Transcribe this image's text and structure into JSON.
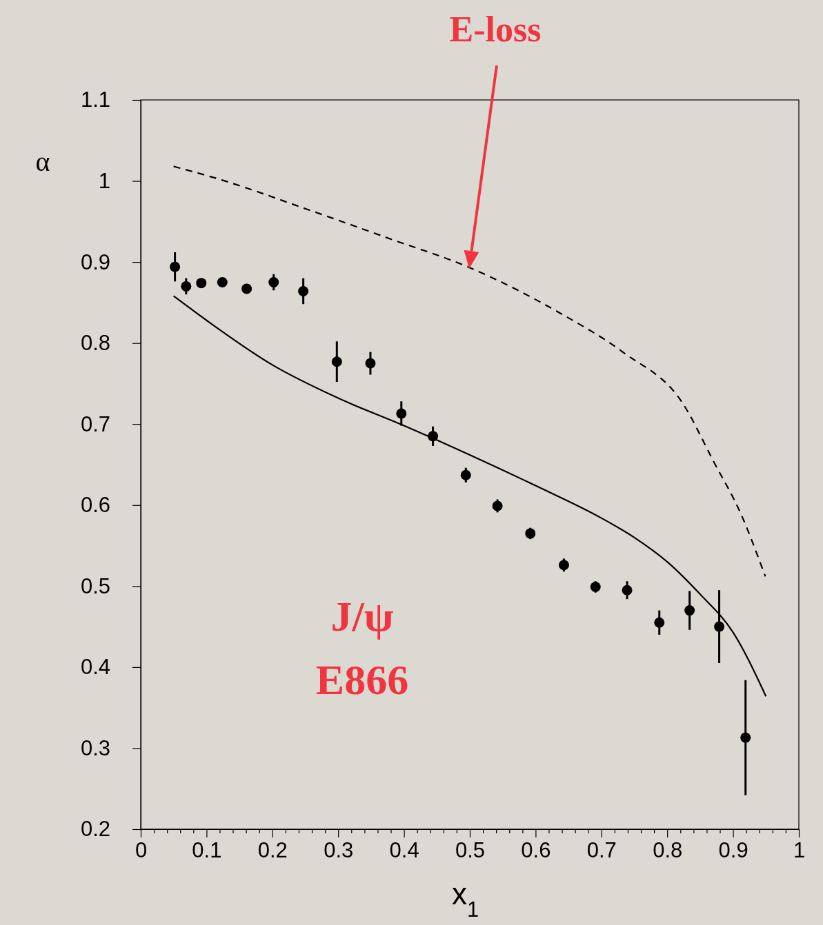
{
  "chart_data": {
    "type": "scatter",
    "xlabel": "x$_{1}$",
    "ylabel": "α",
    "xlim": [
      0,
      1
    ],
    "ylim": [
      0.2,
      1.1
    ],
    "xticks": [
      0,
      {
        "value": 0.02,
        "label": null
      },
      {
        "value": 0.04,
        "label": null
      },
      {
        "value": 0.06,
        "label": null
      },
      {
        "value": 0.08,
        "label": null
      },
      0.1,
      {
        "value": 0.12,
        "label": null
      },
      {
        "value": 0.14,
        "label": null
      },
      {
        "value": 0.16,
        "label": null
      },
      {
        "value": 0.18,
        "label": null
      },
      0.2,
      {
        "value": 0.22,
        "label": null
      },
      {
        "value": 0.24,
        "label": null
      },
      {
        "value": 0.26,
        "label": null
      },
      {
        "value": 0.28,
        "label": null
      },
      0.3,
      {
        "value": 0.32,
        "label": null
      },
      {
        "value": 0.34,
        "label": null
      },
      {
        "value": 0.36,
        "label": null
      },
      {
        "value": 0.38,
        "label": null
      },
      0.4,
      {
        "value": 0.42,
        "label": null
      },
      {
        "value": 0.44,
        "label": null
      },
      {
        "value": 0.46,
        "label": null
      },
      {
        "value": 0.48,
        "label": null
      },
      0.5,
      {
        "value": 0.52,
        "label": null
      },
      {
        "value": 0.54,
        "label": null
      },
      {
        "value": 0.56,
        "label": null
      },
      {
        "value": 0.58,
        "label": null
      },
      0.6,
      {
        "value": 0.62,
        "label": null
      },
      {
        "value": 0.64,
        "label": null
      },
      {
        "value": 0.66,
        "label": null
      },
      {
        "value": 0.68,
        "label": null
      },
      0.7,
      {
        "value": 0.72,
        "label": null
      },
      {
        "value": 0.74,
        "label": null
      },
      {
        "value": 0.76,
        "label": null
      },
      {
        "value": 0.78,
        "label": null
      },
      0.8,
      {
        "value": 0.82,
        "label": null
      },
      {
        "value": 0.84,
        "label": null
      },
      {
        "value": 0.86,
        "label": null
      },
      {
        "value": 0.88,
        "label": null
      },
      0.9,
      {
        "value": 0.92,
        "label": null
      },
      {
        "value": 0.94,
        "label": null
      },
      {
        "value": 0.96,
        "label": null
      },
      {
        "value": 0.98,
        "label": null
      },
      1
    ],
    "yticks": [
      0.2,
      0.3,
      0.4,
      0.5,
      0.6,
      0.7,
      0.8,
      0.9,
      1,
      1.1
    ],
    "grid": false,
    "series": [
      {
        "color": "#000000",
        "marker": "circle",
        "x": [
          0.052,
          0.069,
          0.092,
          0.124,
          0.161,
          0.202,
          0.247,
          0.298,
          0.349,
          0.396,
          0.444,
          0.494,
          0.542,
          0.592,
          0.643,
          0.691,
          0.739,
          0.788,
          0.834,
          0.879,
          0.919
        ],
        "values": [
          0.894,
          0.87,
          0.874,
          0.875,
          0.867,
          0.875,
          0.864,
          0.777,
          0.775,
          0.713,
          0.685,
          0.637,
          0.599,
          0.565,
          0.526,
          0.499,
          0.495,
          0.455,
          0.47,
          0.45,
          0.313
        ],
        "errors": [
          0.018,
          0.01,
          null,
          null,
          0.006,
          0.01,
          0.016,
          0.025,
          0.014,
          0.015,
          0.012,
          0.009,
          0.008,
          0.007,
          0.008,
          0.007,
          0.011,
          0.015,
          0.024,
          0.045,
          0.071
        ]
      },
      {
        "type": "line",
        "color": "#000000",
        "line_style": "solid",
        "x": [
          0.05,
          0.1,
          0.2,
          0.3,
          0.4,
          0.5,
          0.6,
          0.7,
          0.75,
          0.8,
          0.85,
          0.9,
          0.95
        ],
        "values": [
          0.858,
          0.828,
          0.773,
          0.732,
          0.698,
          0.662,
          0.624,
          0.584,
          0.56,
          0.53,
          0.49,
          0.443,
          0.364
        ]
      },
      {
        "type": "line",
        "color": "#000000",
        "line_style": "dashed",
        "x": [
          0.05,
          0.124,
          0.253,
          0.381,
          0.497,
          0.637,
          0.734,
          0.824,
          0.871,
          0.912,
          0.949
        ],
        "values": [
          1.018,
          1.001,
          0.965,
          0.928,
          0.894,
          0.837,
          0.788,
          0.725,
          0.653,
          0.589,
          0.512
        ]
      }
    ],
    "annotations": [
      "E-loss",
      "J/ψ E866"
    ]
  }
}
